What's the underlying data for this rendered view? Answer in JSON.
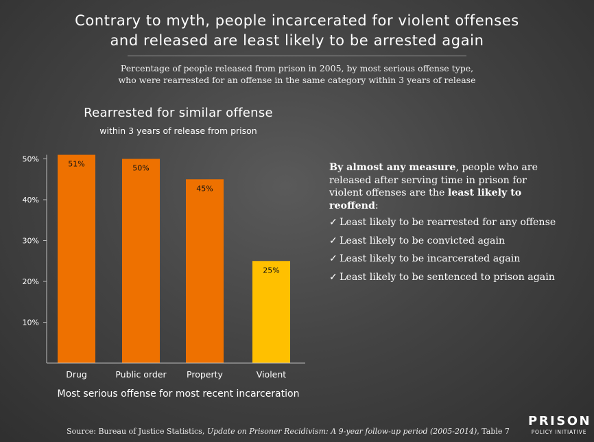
{
  "title_line1": "Contrary to myth, people incarcerated for violent offenses",
  "title_line2": "and released are least likely to be arrested again",
  "subtitle_line1": "Percentage of people released from prison in 2005, by most serious offense type,",
  "subtitle_line2": "who were rearrested for an offense in the same category within 3 years of release",
  "chart_data": {
    "type": "bar",
    "title": "Rearrested for similar offense",
    "subtitle": "within 3 years of release from prison",
    "xlabel": "Most serious offense for most recent incarceration",
    "ylabel": "",
    "categories": [
      "Drug",
      "Public order",
      "Property",
      "Violent"
    ],
    "values": [
      51,
      50,
      45,
      25
    ],
    "data_labels": [
      "51%",
      "50%",
      "45%",
      "25%"
    ],
    "ylim": [
      0,
      50
    ],
    "yticks": [
      10,
      20,
      30,
      40,
      50
    ],
    "ytick_labels": [
      "10%",
      "20%",
      "30%",
      "40%",
      "50%"
    ],
    "grid": false,
    "legend": "none",
    "colors": [
      "#ee7100",
      "#ee7100",
      "#ee7100",
      "#ffc000"
    ]
  },
  "side_text": {
    "bold1": "By almost any measure",
    "text1": ", people who are released after serving time in prison for violent offenses are the ",
    "bold2": "least likely to reoffend",
    "text2": ":"
  },
  "checklist": {
    "check_icon": "✓",
    "items": [
      "Least likely to be rearrested for any offense",
      "Least likely to be convicted again",
      "Least likely to be incarcerated again",
      "Least likely to be sentenced to prison again"
    ]
  },
  "source": {
    "prefix": "Source: Bureau of Justice Statistics, ",
    "italic": "Update on Prisoner Recidivism: A 9-year follow-up period (2005-2014)",
    "suffix": ", Table 7"
  },
  "logo": {
    "top": "PRISON",
    "bottom": "POLICY INITIATIVE"
  }
}
